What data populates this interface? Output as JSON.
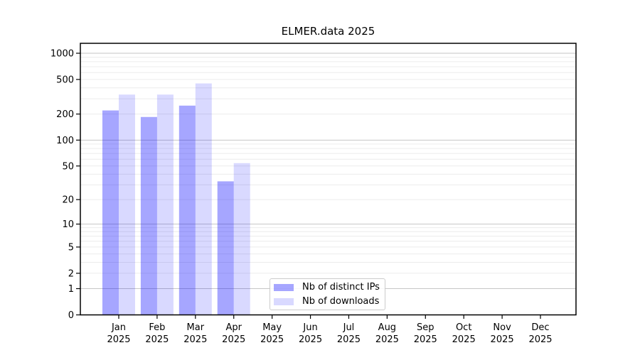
{
  "chart_data": {
    "type": "bar",
    "title": "ELMER.data 2025",
    "categories": [
      "Jan",
      "Feb",
      "Mar",
      "Apr",
      "May",
      "Jun",
      "Jul",
      "Aug",
      "Sep",
      "Oct",
      "Nov",
      "Dec"
    ],
    "x_year_label": "2025",
    "series": [
      {
        "name": "Nb of distinct IPs",
        "color": "#0000ff",
        "opacity": 0.35,
        "values": [
          220,
          185,
          250,
          33,
          0,
          0,
          0,
          0,
          0,
          0,
          0,
          0
        ]
      },
      {
        "name": "Nb of downloads",
        "color": "#0000ff",
        "opacity": 0.15,
        "values": [
          335,
          335,
          450,
          54,
          0,
          0,
          0,
          0,
          0,
          0,
          0,
          0
        ]
      }
    ],
    "yscale": "log1p",
    "yticks": [
      0,
      1,
      2,
      5,
      10,
      20,
      50,
      100,
      200,
      500,
      1000
    ],
    "ylim": [
      0,
      1300
    ],
    "grid": {
      "show": true,
      "orientation": "horizontal",
      "minor_color": "#ececec",
      "major_color": "#c6c6c6",
      "major_lines_at": [
        1,
        10,
        100,
        1000
      ]
    },
    "legend": {
      "position": "inside-bottom-center",
      "labels": [
        "Nb of distinct IPs",
        "Nb of downloads"
      ]
    },
    "axis_color": "#000000",
    "background_color": "#ffffff"
  }
}
